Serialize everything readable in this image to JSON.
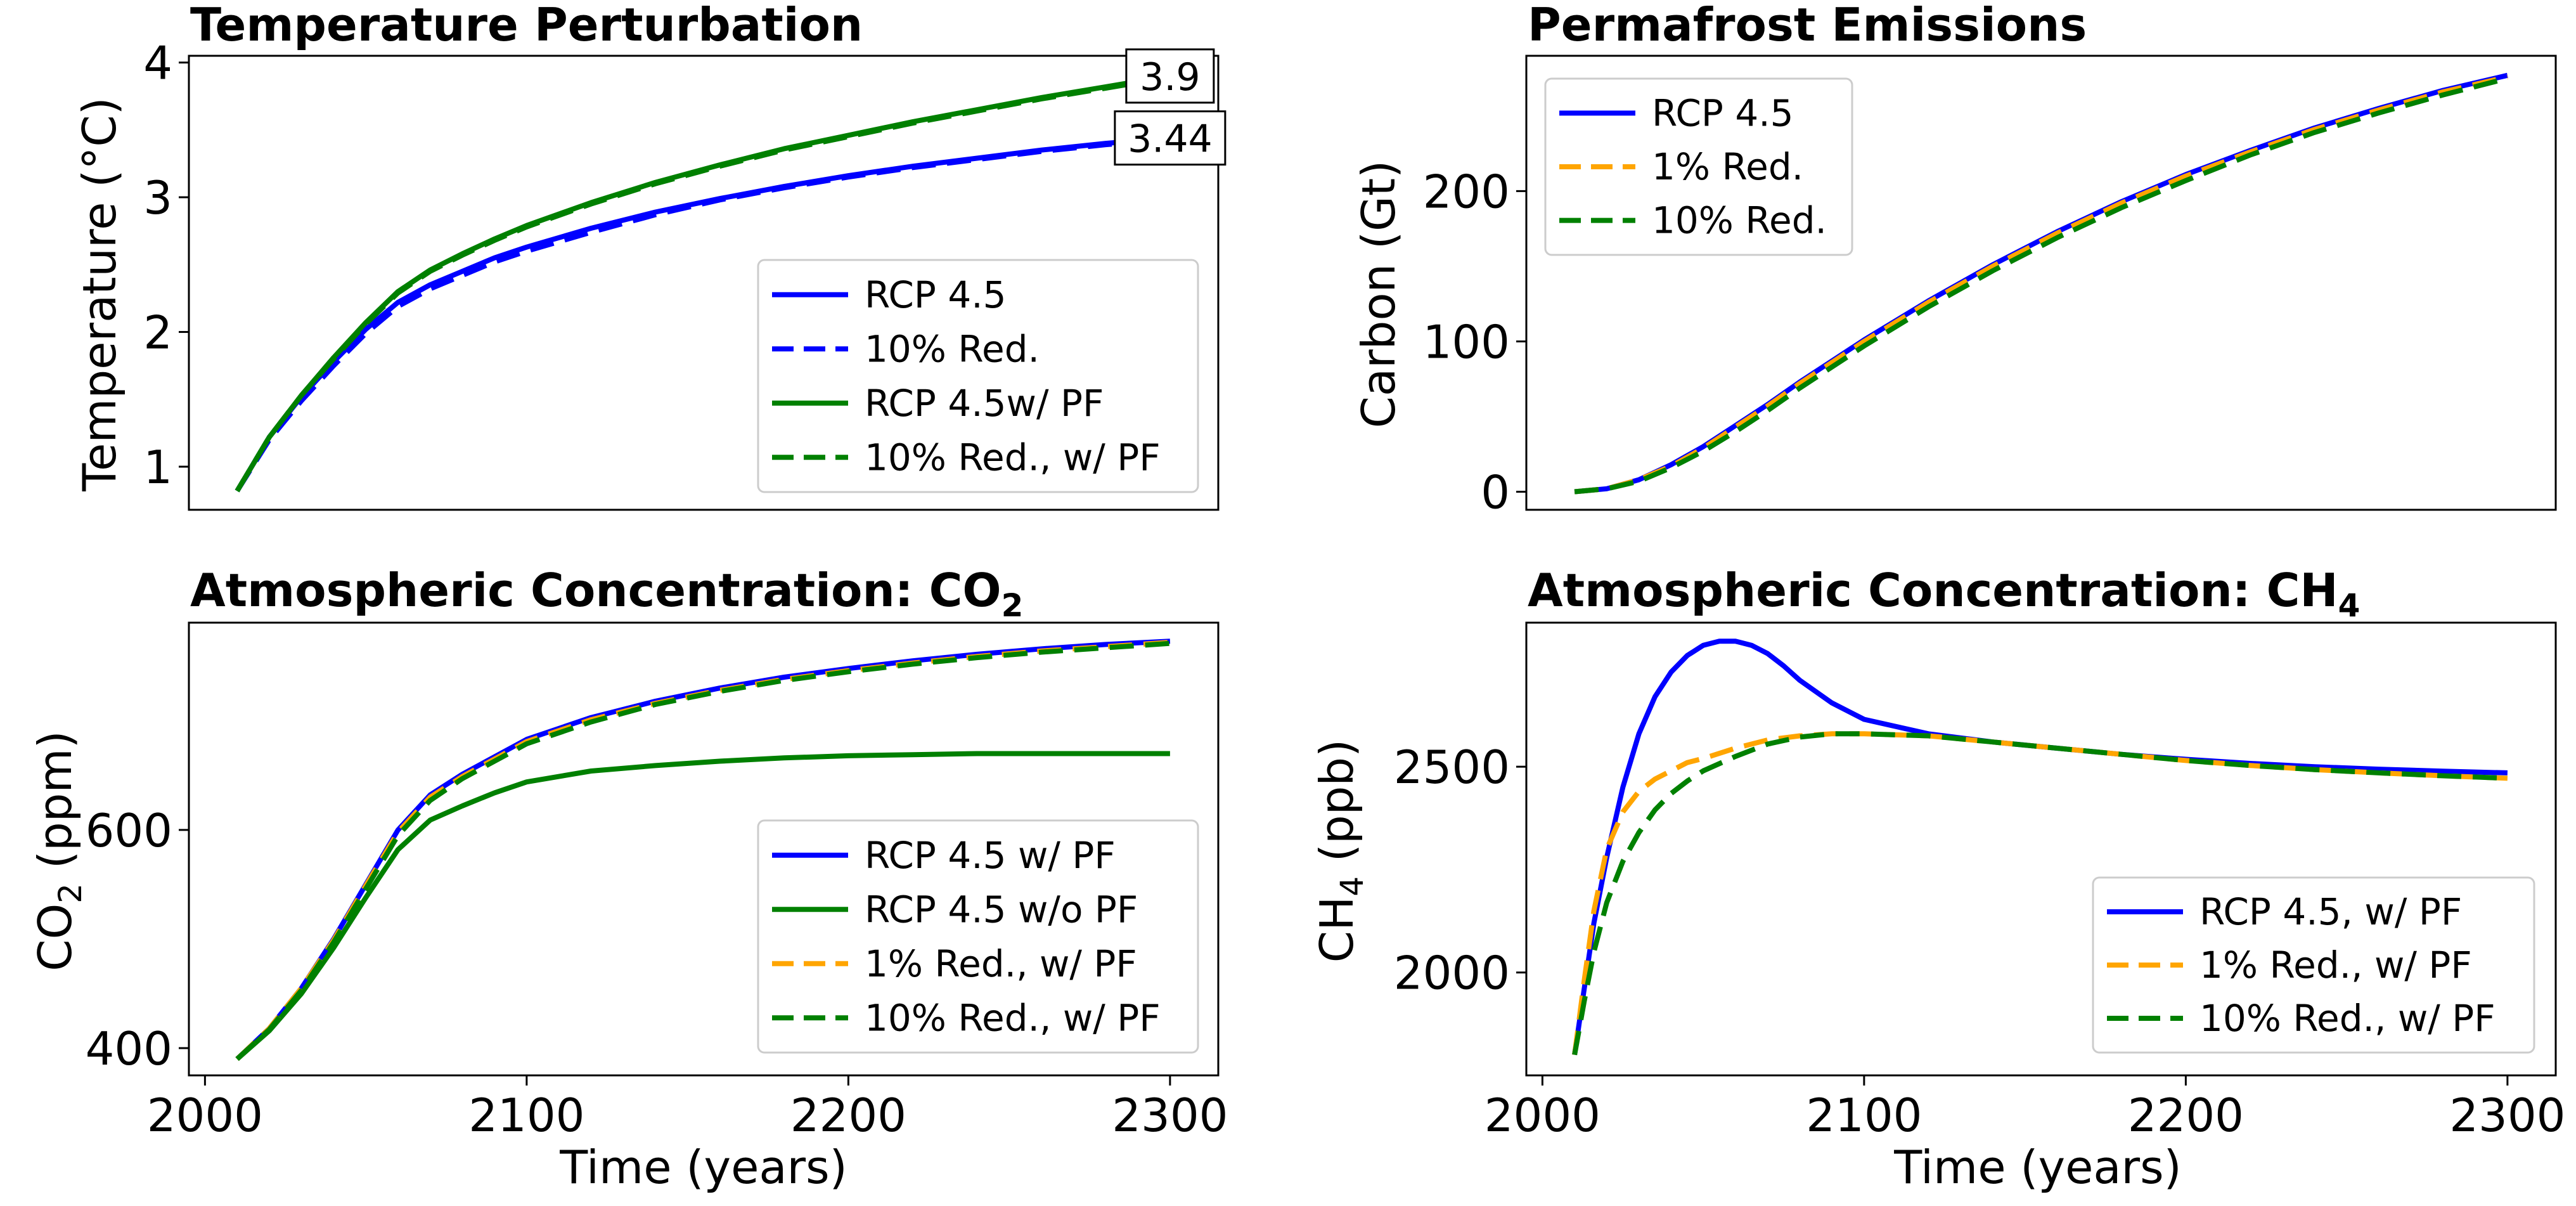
{
  "chart_data": [
    {
      "id": "temperature",
      "type": "line",
      "title": "Temperature Perturbation",
      "xlabel": "",
      "ylabel": "Temperature (°C)",
      "xlim": [
        1995,
        2315
      ],
      "ylim": [
        0.68,
        4.05
      ],
      "xticks": [],
      "yticks": [
        1,
        2,
        3,
        4
      ],
      "grid": false,
      "legend_position": "lower-right",
      "series": [
        {
          "name": "RCP 4.5",
          "color": "#0000ff",
          "dash": "solid",
          "x": [
            2010,
            2020,
            2030,
            2040,
            2050,
            2060,
            2070,
            2080,
            2090,
            2100,
            2120,
            2140,
            2160,
            2180,
            2200,
            2220,
            2240,
            2260,
            2280,
            2300
          ],
          "y": [
            0.82,
            1.22,
            1.52,
            1.78,
            2.02,
            2.22,
            2.35,
            2.45,
            2.55,
            2.63,
            2.77,
            2.89,
            2.99,
            3.08,
            3.16,
            3.23,
            3.29,
            3.35,
            3.4,
            3.44
          ]
        },
        {
          "name": "10% Red.",
          "color": "#0000ff",
          "dash": "dashed",
          "x": [
            2010,
            2020,
            2030,
            2040,
            2050,
            2060,
            2070,
            2080,
            2090,
            2100,
            2120,
            2140,
            2160,
            2180,
            2200,
            2220,
            2240,
            2260,
            2280,
            2300
          ],
          "y": [
            0.82,
            1.2,
            1.49,
            1.75,
            1.99,
            2.19,
            2.32,
            2.42,
            2.52,
            2.6,
            2.74,
            2.87,
            2.98,
            3.07,
            3.15,
            3.22,
            3.28,
            3.34,
            3.39,
            3.43
          ]
        },
        {
          "name": "RCP 4.5w/ PF",
          "color": "#008000",
          "dash": "solid",
          "x": [
            2010,
            2020,
            2030,
            2040,
            2050,
            2060,
            2070,
            2080,
            2090,
            2100,
            2120,
            2140,
            2160,
            2180,
            2200,
            2220,
            2240,
            2260,
            2280,
            2300
          ],
          "y": [
            0.82,
            1.22,
            1.53,
            1.81,
            2.07,
            2.3,
            2.46,
            2.58,
            2.69,
            2.79,
            2.96,
            3.11,
            3.24,
            3.36,
            3.46,
            3.56,
            3.65,
            3.74,
            3.82,
            3.9
          ]
        },
        {
          "name": "10% Red., w/ PF",
          "color": "#008000",
          "dash": "dashed",
          "x": [
            2010,
            2020,
            2030,
            2040,
            2050,
            2060,
            2070,
            2080,
            2090,
            2100,
            2120,
            2140,
            2160,
            2180,
            2200,
            2220,
            2240,
            2260,
            2280,
            2300
          ],
          "y": [
            0.82,
            1.22,
            1.53,
            1.8,
            2.06,
            2.29,
            2.45,
            2.57,
            2.68,
            2.78,
            2.95,
            3.1,
            3.23,
            3.35,
            3.45,
            3.55,
            3.64,
            3.73,
            3.81,
            3.89
          ]
        }
      ],
      "annotations": [
        {
          "text": "3.9",
          "x": 2300,
          "y": 3.9
        },
        {
          "text": "3.44",
          "x": 2300,
          "y": 3.44
        }
      ]
    },
    {
      "id": "permafrost",
      "type": "line",
      "title": "Permafrost Emissions",
      "xlabel": "",
      "ylabel": "Carbon (Gt)",
      "xlim": [
        1995,
        2315
      ],
      "ylim": [
        -12,
        290
      ],
      "xticks": [],
      "yticks": [
        0,
        100,
        200
      ],
      "grid": false,
      "legend_position": "upper-left",
      "series": [
        {
          "name": "RCP 4.5",
          "color": "#0000ff",
          "dash": "solid",
          "x": [
            2010,
            2020,
            2030,
            2040,
            2050,
            2060,
            2070,
            2080,
            2090,
            2100,
            2120,
            2140,
            2160,
            2180,
            2200,
            2220,
            2240,
            2260,
            2280,
            2300
          ],
          "y": [
            0,
            2,
            8,
            18,
            30,
            44,
            58,
            73,
            87,
            101,
            127,
            151,
            173,
            193,
            211,
            227,
            242,
            255,
            267,
            277
          ]
        },
        {
          "name": "1% Red.",
          "color": "#ffa500",
          "dash": "dashed",
          "x": [
            2010,
            2020,
            2030,
            2040,
            2050,
            2060,
            2070,
            2080,
            2090,
            2100,
            2120,
            2140,
            2160,
            2180,
            2200,
            2220,
            2240,
            2260,
            2280,
            2300
          ],
          "y": [
            0,
            2,
            8,
            17,
            29,
            43,
            57,
            72,
            86,
            100,
            126,
            150,
            172,
            192,
            210,
            226,
            241,
            254,
            266,
            276
          ]
        },
        {
          "name": "10% Red.",
          "color": "#008000",
          "dash": "dashed",
          "x": [
            2010,
            2020,
            2030,
            2040,
            2050,
            2060,
            2070,
            2080,
            2090,
            2100,
            2120,
            2140,
            2160,
            2180,
            2200,
            2220,
            2240,
            2260,
            2280,
            2300
          ],
          "y": [
            0,
            2,
            7,
            16,
            27,
            40,
            54,
            69,
            83,
            97,
            123,
            147,
            169,
            189,
            207,
            224,
            239,
            252,
            264,
            275
          ]
        }
      ]
    },
    {
      "id": "co2",
      "type": "line",
      "title": "Atmospheric Concentration: CO",
      "title_sub": "2",
      "xlabel": "Time (years)",
      "ylabel_main": "CO",
      "ylabel_sub": "2",
      "ylabel_tail": " (ppm)",
      "xlim": [
        1995,
        2315
      ],
      "ylim": [
        375,
        790
      ],
      "xticks": [
        2000,
        2100,
        2200,
        2300
      ],
      "yticks": [
        400,
        600
      ],
      "grid": false,
      "legend_position": "lower-right",
      "series": [
        {
          "name": "RCP 4.5 w/ PF",
          "color": "#0000ff",
          "dash": "solid",
          "x": [
            2010,
            2020,
            2030,
            2040,
            2050,
            2060,
            2070,
            2080,
            2090,
            2100,
            2120,
            2140,
            2160,
            2180,
            2200,
            2220,
            2240,
            2260,
            2280,
            2300
          ],
          "y": [
            390,
            418,
            455,
            500,
            550,
            600,
            632,
            651,
            667,
            683,
            703,
            718,
            730,
            740,
            748,
            755,
            761,
            766,
            770,
            773
          ]
        },
        {
          "name": "RCP 4.5 w/o PF",
          "color": "#008000",
          "dash": "solid",
          "x": [
            2010,
            2020,
            2030,
            2040,
            2050,
            2060,
            2070,
            2080,
            2090,
            2100,
            2120,
            2140,
            2160,
            2180,
            2200,
            2220,
            2240,
            2260,
            2280,
            2300
          ],
          "y": [
            390,
            416,
            450,
            492,
            538,
            582,
            609,
            622,
            634,
            644,
            654,
            659,
            663,
            666,
            668,
            669,
            670,
            670,
            670,
            670
          ]
        },
        {
          "name": "1% Red., w/ PF",
          "color": "#ffa500",
          "dash": "dashed",
          "x": [
            2010,
            2020,
            2030,
            2040,
            2050,
            2060,
            2070,
            2080,
            2090,
            2100,
            2120,
            2140,
            2160,
            2180,
            2200,
            2220,
            2240,
            2260,
            2280,
            2300
          ],
          "y": [
            390,
            418,
            455,
            499,
            549,
            598,
            630,
            649,
            665,
            681,
            701,
            716,
            728,
            738,
            746,
            753,
            759,
            764,
            768,
            772
          ]
        },
        {
          "name": "10% Red., w/ PF",
          "color": "#008000",
          "dash": "dashed",
          "x": [
            2010,
            2020,
            2030,
            2040,
            2050,
            2060,
            2070,
            2080,
            2090,
            2100,
            2120,
            2140,
            2160,
            2180,
            2200,
            2220,
            2240,
            2260,
            2280,
            2300
          ],
          "y": [
            390,
            417,
            453,
            497,
            546,
            595,
            627,
            647,
            663,
            679,
            699,
            715,
            727,
            737,
            745,
            752,
            758,
            763,
            767,
            771
          ]
        }
      ]
    },
    {
      "id": "ch4",
      "type": "line",
      "title": "Atmospheric Concentration: CH",
      "title_sub": "4",
      "xlabel": "Time (years)",
      "ylabel_main": "CH",
      "ylabel_sub": "4",
      "ylabel_tail": " (ppb)",
      "xlim": [
        1995,
        2315
      ],
      "ylim": [
        1750,
        2850
      ],
      "xticks": [
        2000,
        2100,
        2200,
        2300
      ],
      "yticks": [
        2000,
        2500
      ],
      "grid": false,
      "legend_position": "lower-right",
      "series": [
        {
          "name": "RCP 4.5, w/ PF",
          "color": "#0000ff",
          "dash": "solid",
          "x": [
            2010,
            2013,
            2016,
            2020,
            2025,
            2030,
            2035,
            2040,
            2045,
            2050,
            2055,
            2060,
            2065,
            2070,
            2075,
            2080,
            2090,
            2100,
            2120,
            2140,
            2160,
            2180,
            2200,
            2220,
            2240,
            2260,
            2280,
            2300
          ],
          "y": [
            1800,
            1960,
            2120,
            2280,
            2450,
            2580,
            2670,
            2730,
            2770,
            2795,
            2805,
            2805,
            2795,
            2775,
            2745,
            2710,
            2655,
            2615,
            2580,
            2560,
            2545,
            2530,
            2518,
            2508,
            2500,
            2494,
            2489,
            2485
          ]
        },
        {
          "name": "1% Red., w/ PF",
          "color": "#ffa500",
          "dash": "dashed",
          "x": [
            2010,
            2013,
            2016,
            2020,
            2025,
            2030,
            2035,
            2040,
            2045,
            2050,
            2060,
            2070,
            2080,
            2090,
            2100,
            2120,
            2140,
            2160,
            2180,
            2200,
            2220,
            2240,
            2260,
            2280,
            2300
          ],
          "y": [
            1800,
            1980,
            2150,
            2300,
            2390,
            2440,
            2470,
            2490,
            2510,
            2520,
            2545,
            2565,
            2575,
            2580,
            2580,
            2575,
            2560,
            2545,
            2530,
            2515,
            2503,
            2493,
            2485,
            2478,
            2472
          ]
        },
        {
          "name": "10% Red., w/ PF",
          "color": "#008000",
          "dash": "dashed",
          "x": [
            2010,
            2013,
            2016,
            2020,
            2025,
            2030,
            2035,
            2040,
            2045,
            2050,
            2060,
            2070,
            2080,
            2090,
            2100,
            2120,
            2140,
            2160,
            2180,
            2200,
            2220,
            2240,
            2260,
            2280,
            2300
          ],
          "y": [
            1800,
            1930,
            2050,
            2170,
            2270,
            2340,
            2395,
            2435,
            2465,
            2490,
            2525,
            2555,
            2572,
            2580,
            2580,
            2575,
            2560,
            2545,
            2530,
            2515,
            2503,
            2493,
            2485,
            2478,
            2472
          ]
        }
      ]
    }
  ]
}
